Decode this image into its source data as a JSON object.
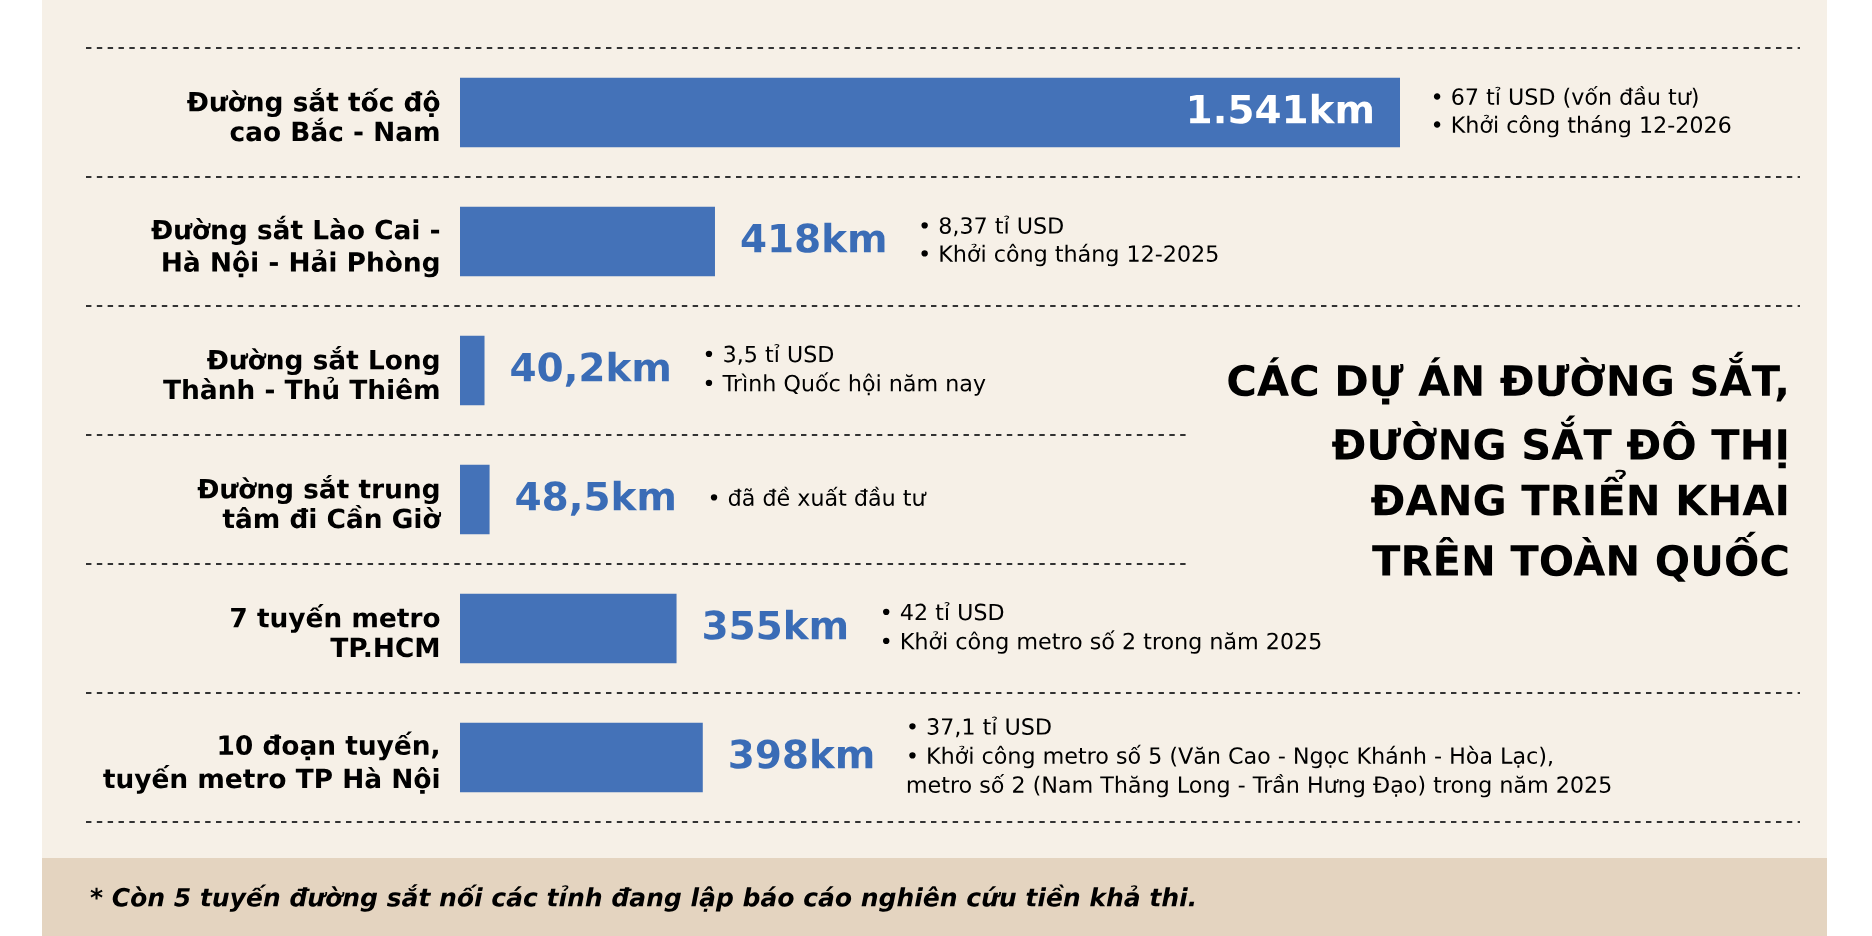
{
  "chart_data": {
    "type": "bar",
    "orientation": "horizontal",
    "title": "CÁC DỰ ÁN ĐƯỜNG SẮT,\nĐƯỜNG SẮT ĐÔ THỊ\nĐANG TRIỂN KHAI\nTRÊN TOÀN QUỐC",
    "categories": [
      "Đường sắt tốc độ\ncao Bắc - Nam",
      "Đường sắt Lào Cai -\nHà Nội - Hải Phòng",
      "Đường sắt Long\nThành - Thủ Thiêm",
      "Đường sắt trung\ntâm đi Cần Giờ",
      "7 tuyến metro\nTP.HCM",
      "10 đoạn tuyến,\ntuyến metro TP Hà Nội"
    ],
    "values": [
      1541,
      418,
      40.2,
      48.5,
      355,
      398
    ],
    "color": "#4472b8",
    "value_labels": [
      "1.541km",
      "418km",
      "40,2km",
      "48,5km",
      "355km",
      "398km"
    ],
    "tick_labels": "y",
    "annotations": [
      "• 67 tỉ USD (vốn đầu tư)\n• Khởi công tháng 12-2026",
      "• 8,37 tỉ USD\n• Khởi công tháng 12-2025",
      "• 3,5 tỉ USD\n• Trình Quốc hội năm nay",
      "• đã đề xuất đầu tư",
      "• 42 tỉ USD\n• Khởi công metro số 2 trong năm 2025",
      "• 37,1 tỉ USD\n• Khởi công metro số 5 (Văn Cao - Ngọc Khánh - Hòa Lạc),\nmetro số 2 (Nam Thăng Long - Trần Hưng Đạo) trong năm 2025",
      "* Còn 5 tuyến đường sắt nối các tỉnh đang lập báo cáo nghiên cứu tiền khả thi."
    ]
  }
}
